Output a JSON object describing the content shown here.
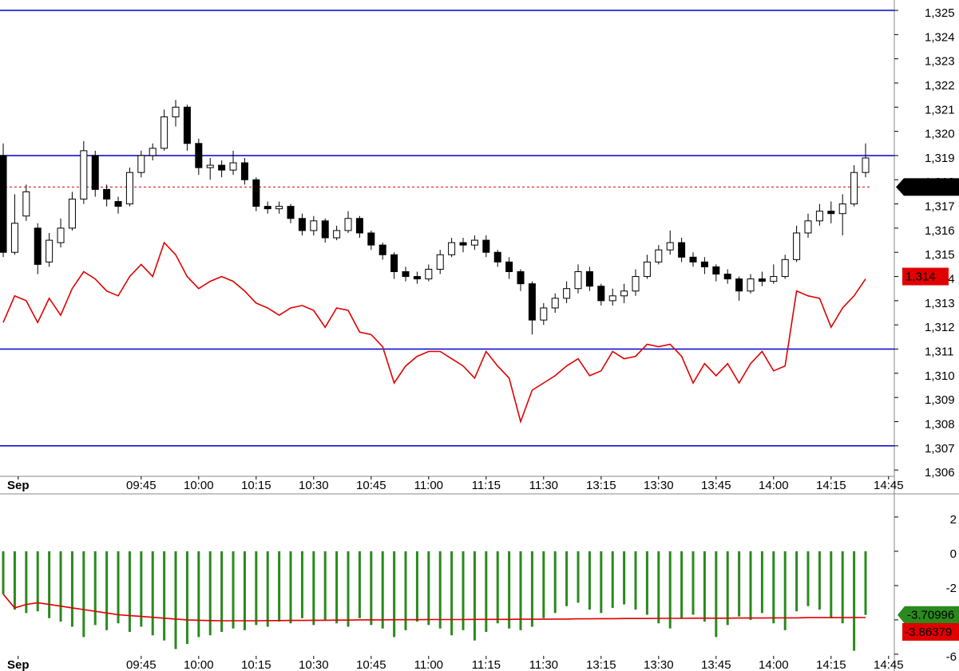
{
  "chart_data": [
    {
      "type": "candlestick",
      "open": [
        1319.0,
        1315.0,
        1316.5,
        1316.0,
        1314.6,
        1315.4,
        1316.0,
        1317.2,
        1319.0,
        1317.6,
        1317.1,
        1317.0,
        1318.3,
        1319.0,
        1319.3,
        1320.6,
        1321.0,
        1319.5,
        1318.5,
        1318.6,
        1318.4,
        1318.7,
        1318.0,
        1316.9,
        1316.8,
        1316.9,
        1316.4,
        1315.9,
        1316.3,
        1315.6,
        1315.9,
        1316.4,
        1315.8,
        1315.3,
        1314.9,
        1314.2,
        1314.0,
        1313.9,
        1314.3,
        1314.9,
        1315.4,
        1315.3,
        1315.5,
        1315.0,
        1314.6,
        1314.2,
        1313.7,
        1312.2,
        1312.7,
        1313.1,
        1313.5,
        1314.2,
        1313.6,
        1313.0,
        1313.2,
        1313.4,
        1314.0,
        1314.6,
        1315.1,
        1315.4,
        1314.8,
        1314.6,
        1314.4,
        1314.1,
        1313.9,
        1313.4,
        1313.9,
        1313.8,
        1314.0,
        1314.7,
        1315.8,
        1316.3,
        1316.7,
        1316.6,
        1317.0,
        1318.3
      ],
      "high": [
        1319.5,
        1317.4,
        1317.8,
        1316.2,
        1315.8,
        1316.4,
        1317.5,
        1319.6,
        1319.2,
        1317.8,
        1317.3,
        1318.5,
        1319.2,
        1319.5,
        1320.9,
        1321.3,
        1321.1,
        1319.7,
        1318.9,
        1318.8,
        1319.2,
        1318.9,
        1318.1,
        1317.1,
        1317.1,
        1317.0,
        1316.6,
        1316.5,
        1316.4,
        1316.1,
        1316.7,
        1316.5,
        1315.9,
        1315.4,
        1315.0,
        1314.4,
        1314.2,
        1314.5,
        1315.1,
        1315.6,
        1315.6,
        1315.7,
        1315.7,
        1315.1,
        1314.8,
        1314.3,
        1313.8,
        1312.9,
        1313.3,
        1313.8,
        1314.5,
        1314.4,
        1313.7,
        1313.5,
        1313.7,
        1314.3,
        1314.9,
        1315.3,
        1315.9,
        1315.6,
        1315.0,
        1314.8,
        1314.5,
        1314.3,
        1314.0,
        1314.1,
        1314.2,
        1314.5,
        1314.9,
        1316.1,
        1316.6,
        1317.0,
        1317.1,
        1317.4,
        1318.6,
        1319.5
      ],
      "low": [
        1314.8,
        1314.9,
        1316.3,
        1314.1,
        1314.4,
        1315.2,
        1315.9,
        1317.0,
        1317.3,
        1316.9,
        1316.6,
        1316.9,
        1318.1,
        1318.8,
        1319.2,
        1320.2,
        1319.2,
        1318.2,
        1318.0,
        1318.1,
        1318.2,
        1317.8,
        1316.7,
        1316.6,
        1316.6,
        1316.2,
        1315.7,
        1315.7,
        1315.4,
        1315.5,
        1315.8,
        1315.6,
        1315.1,
        1314.7,
        1313.9,
        1313.8,
        1313.7,
        1313.8,
        1314.1,
        1314.8,
        1315.0,
        1315.1,
        1314.8,
        1314.4,
        1313.9,
        1313.4,
        1311.6,
        1312.0,
        1312.5,
        1312.9,
        1313.3,
        1313.4,
        1312.8,
        1312.8,
        1312.9,
        1313.2,
        1313.9,
        1314.5,
        1314.9,
        1314.6,
        1314.4,
        1314.1,
        1313.8,
        1313.7,
        1313.0,
        1313.3,
        1313.6,
        1313.7,
        1313.9,
        1314.6,
        1315.6,
        1316.1,
        1316.2,
        1315.7,
        1316.9,
        1318.1
      ],
      "close": [
        1315.0,
        1316.2,
        1317.5,
        1314.5,
        1315.5,
        1316.0,
        1317.2,
        1319.2,
        1317.6,
        1317.2,
        1316.9,
        1318.3,
        1319.0,
        1319.3,
        1320.6,
        1321.0,
        1319.5,
        1318.5,
        1318.6,
        1318.4,
        1318.7,
        1318.0,
        1316.9,
        1316.8,
        1316.9,
        1316.4,
        1315.9,
        1316.3,
        1315.6,
        1315.9,
        1316.4,
        1315.8,
        1315.3,
        1314.9,
        1314.2,
        1314.0,
        1313.9,
        1314.3,
        1314.9,
        1315.4,
        1315.3,
        1315.5,
        1315.0,
        1314.6,
        1314.2,
        1313.7,
        1312.2,
        1312.7,
        1313.1,
        1313.5,
        1314.2,
        1313.6,
        1313.0,
        1313.2,
        1313.4,
        1314.0,
        1314.6,
        1315.1,
        1315.4,
        1314.8,
        1314.6,
        1314.4,
        1314.1,
        1313.9,
        1313.4,
        1313.9,
        1313.8,
        1314.0,
        1314.7,
        1315.8,
        1316.3,
        1316.7,
        1316.6,
        1317.0,
        1318.3,
        1318.9
      ],
      "up_color": "#ffffff",
      "down_color": "#000000",
      "line": {
        "color": "#e00000",
        "values": [
          1312.1,
          1313.2,
          1313.0,
          1312.1,
          1313.1,
          1312.4,
          1313.5,
          1314.2,
          1313.9,
          1313.4,
          1313.2,
          1314.0,
          1314.5,
          1314.0,
          1315.4,
          1314.9,
          1314.0,
          1313.5,
          1313.8,
          1314.0,
          1313.8,
          1313.4,
          1312.9,
          1312.7,
          1312.4,
          1312.7,
          1312.8,
          1312.6,
          1311.9,
          1312.7,
          1312.6,
          1311.7,
          1311.6,
          1311.1,
          1309.6,
          1310.3,
          1310.7,
          1310.9,
          1310.9,
          1310.6,
          1310.3,
          1309.8,
          1310.9,
          1310.3,
          1309.8,
          1308.0,
          1309.3,
          1309.6,
          1309.9,
          1310.3,
          1310.6,
          1309.9,
          1310.1,
          1310.9,
          1310.6,
          1310.7,
          1311.2,
          1311.1,
          1311.2,
          1310.7,
          1309.6,
          1310.4,
          1309.9,
          1310.4,
          1309.6,
          1310.4,
          1310.9,
          1310.1,
          1310.3,
          1313.4,
          1313.2,
          1313.1,
          1311.9,
          1312.7,
          1313.2,
          1313.9
        ]
      },
      "hlines": [
        1325,
        1319,
        1311,
        1307
      ],
      "hline_color": "#0000cc",
      "markers": [
        {
          "value": 1317.7,
          "label": "1,317.7",
          "color": "#000000",
          "dashed": true
        },
        {
          "value": 1314,
          "label": "1,314",
          "color": "#e00000",
          "dashed": false
        }
      ],
      "xlim": [
        -0.28,
        77.5
      ],
      "xticks": [
        {
          "value": 1.3,
          "label": "Sep"
        },
        {
          "value": 12,
          "label": "09:45"
        },
        {
          "value": 17,
          "label": "10:00"
        },
        {
          "value": 22,
          "label": "10:15"
        },
        {
          "value": 27,
          "label": "10:30"
        },
        {
          "value": 32,
          "label": "10:45"
        },
        {
          "value": 37,
          "label": "11:00"
        },
        {
          "value": 42,
          "label": "11:15"
        },
        {
          "value": 47,
          "label": "11:30"
        },
        {
          "value": 52,
          "label": "13:15"
        },
        {
          "value": 57,
          "label": "13:30"
        },
        {
          "value": 62,
          "label": "13:45"
        },
        {
          "value": 67,
          "label": "14:00"
        },
        {
          "value": 72,
          "label": "14:15"
        },
        {
          "value": 77,
          "label": "14:45"
        }
      ],
      "ylim": [
        1305.74,
        1325.43
      ],
      "yticks": [
        {
          "value": 1306,
          "label": "1,306"
        },
        {
          "value": 1307,
          "label": "1,307"
        },
        {
          "value": 1308,
          "label": "1,308"
        },
        {
          "value": 1309,
          "label": "1,309"
        },
        {
          "value": 1310,
          "label": "1,310"
        },
        {
          "value": 1311,
          "label": "1,311"
        },
        {
          "value": 1312,
          "label": "1,312"
        },
        {
          "value": 1313,
          "label": "1,313"
        },
        {
          "value": 1314,
          "label": "1,314"
        },
        {
          "value": 1315,
          "label": "1,315"
        },
        {
          "value": 1316,
          "label": "1,316"
        },
        {
          "value": 1317,
          "label": "1,317"
        },
        {
          "value": 1318,
          "label": "1,318"
        },
        {
          "value": 1319,
          "label": "1,319"
        },
        {
          "value": 1320,
          "label": "1,320"
        },
        {
          "value": 1321,
          "label": "1,321"
        },
        {
          "value": 1322,
          "label": "1,322"
        },
        {
          "value": 1323,
          "label": "1,323"
        },
        {
          "value": 1324,
          "label": "1,324"
        },
        {
          "value": 1325,
          "label": "1,325"
        }
      ]
    },
    {
      "type": "bar",
      "color": "#2a8a1e",
      "values": [
        -2.5,
        -3.4,
        -3.6,
        -3.5,
        -3.9,
        -4.1,
        -4.4,
        -5.0,
        -4.3,
        -4.6,
        -4.2,
        -4.7,
        -4.4,
        -4.9,
        -5.2,
        -5.7,
        -5.4,
        -5.0,
        -4.9,
        -4.7,
        -4.5,
        -4.6,
        -4.3,
        -4.4,
        -4.1,
        -4.2,
        -3.9,
        -4.3,
        -4.0,
        -4.2,
        -4.4,
        -3.9,
        -4.3,
        -4.5,
        -5.0,
        -4.6,
        -4.1,
        -4.3,
        -4.5,
        -4.9,
        -4.6,
        -5.2,
        -4.7,
        -4.2,
        -4.5,
        -4.6,
        -4.4,
        -3.9,
        -3.6,
        -3.2,
        -3.0,
        -3.4,
        -3.6,
        -3.3,
        -3.1,
        -3.4,
        -3.7,
        -4.2,
        -4.5,
        -3.9,
        -3.7,
        -4.1,
        -5.0,
        -4.3,
        -3.8,
        -4.0,
        -3.6,
        -4.2,
        -4.6,
        -3.5,
        -3.2,
        -3.4,
        -3.9,
        -4.2,
        -5.8,
        -3.70996
      ],
      "line": {
        "color": "#e00000",
        "values": [
          -2.5,
          -3.3,
          -3.1,
          -3.0,
          -3.1,
          -3.2,
          -3.3,
          -3.4,
          -3.5,
          -3.6,
          -3.7,
          -3.75,
          -3.8,
          -3.85,
          -3.9,
          -3.95,
          -4.0,
          -4.02,
          -4.04,
          -4.05,
          -4.05,
          -4.05,
          -4.05,
          -4.04,
          -4.04,
          -4.03,
          -4.03,
          -4.02,
          -4.02,
          -4.01,
          -4.01,
          -4.0,
          -4.0,
          -4.0,
          -3.99,
          -3.99,
          -3.99,
          -3.98,
          -3.98,
          -3.98,
          -3.98,
          -3.97,
          -3.97,
          -3.97,
          -3.97,
          -3.96,
          -3.96,
          -3.96,
          -3.95,
          -3.95,
          -3.94,
          -3.94,
          -3.93,
          -3.93,
          -3.92,
          -3.92,
          -3.92,
          -3.91,
          -3.91,
          -3.91,
          -3.9,
          -3.9,
          -3.9,
          -3.9,
          -3.89,
          -3.89,
          -3.89,
          -3.88,
          -3.88,
          -3.88,
          -3.87,
          -3.87,
          -3.87,
          -3.87,
          -3.86,
          -3.86379
        ]
      },
      "xlim": [
        -0.28,
        77.5
      ],
      "xticks": [
        {
          "value": 1.3,
          "label": "Sep"
        },
        {
          "value": 12,
          "label": "09:45"
        },
        {
          "value": 17,
          "label": "10:00"
        },
        {
          "value": 22,
          "label": "10:15"
        },
        {
          "value": 27,
          "label": "10:30"
        },
        {
          "value": 32,
          "label": "10:45"
        },
        {
          "value": 37,
          "label": "11:00"
        },
        {
          "value": 42,
          "label": "11:15"
        },
        {
          "value": 47,
          "label": "11:30"
        },
        {
          "value": 52,
          "label": "13:15"
        },
        {
          "value": 57,
          "label": "13:30"
        },
        {
          "value": 62,
          "label": "13:45"
        },
        {
          "value": 67,
          "label": "14:00"
        },
        {
          "value": 72,
          "label": "14:15"
        },
        {
          "value": 77,
          "label": "14:45"
        }
      ],
      "ylim": [
        -6.98,
        3.3
      ],
      "yticks": [
        2,
        0,
        -2,
        -4,
        -6
      ]
    }
  ]
}
